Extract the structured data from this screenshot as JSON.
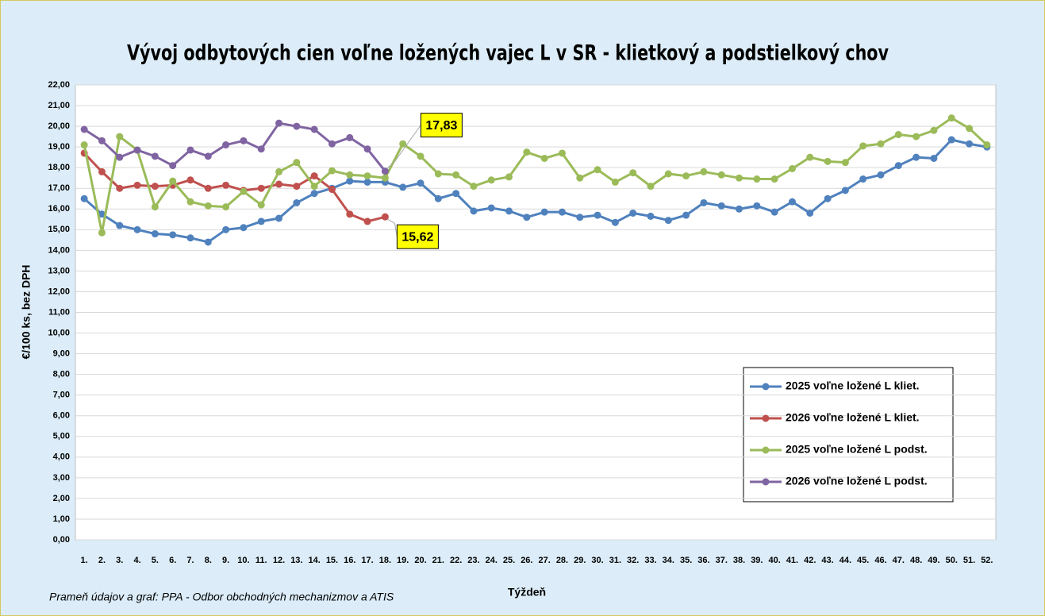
{
  "chart_data": {
    "type": "line",
    "title": "Vývoj odbytových cien voľne ložených vajec L v SR - klietkový a podstielkový chov",
    "y_label": "€/100 ks, bez DPH",
    "x_label": "Týždeň",
    "source": "Prameň údajov a graf: PPA - Odbor obchodných mechanizmov a ATIS",
    "categories": [
      "1.",
      "2.",
      "3.",
      "4.",
      "5.",
      "6.",
      "7.",
      "8.",
      "9.",
      "10.",
      "11.",
      "12.",
      "13.",
      "14.",
      "15.",
      "16.",
      "17.",
      "18.",
      "19.",
      "20.",
      "21.",
      "22.",
      "23.",
      "24.",
      "25.",
      "26.",
      "27.",
      "28.",
      "29.",
      "30.",
      "31.",
      "32.",
      "33.",
      "34.",
      "35.",
      "36.",
      "37.",
      "38.",
      "39.",
      "40.",
      "41.",
      "42.",
      "43.",
      "44.",
      "45.",
      "46.",
      "47.",
      "48.",
      "49.",
      "50.",
      "51.",
      "52."
    ],
    "ylim": [
      0,
      22
    ],
    "yticks": [
      {
        "value": 0,
        "label": "0,00"
      },
      {
        "value": 1,
        "label": "1,00"
      },
      {
        "value": 2,
        "label": "2,00"
      },
      {
        "value": 3,
        "label": "3,00"
      },
      {
        "value": 4,
        "label": "4,00"
      },
      {
        "value": 5,
        "label": "5,00"
      },
      {
        "value": 6,
        "label": "6,00"
      },
      {
        "value": 7,
        "label": "7,00"
      },
      {
        "value": 8,
        "label": "8,00"
      },
      {
        "value": 9,
        "label": "9,00"
      },
      {
        "value": 10,
        "label": "10,00"
      },
      {
        "value": 11,
        "label": "11,00"
      },
      {
        "value": 12,
        "label": "12,00"
      },
      {
        "value": 13,
        "label": "13,00"
      },
      {
        "value": 14,
        "label": "14,00"
      },
      {
        "value": 15,
        "label": "15,00"
      },
      {
        "value": 16,
        "label": "16,00"
      },
      {
        "value": 17,
        "label": "17,00"
      },
      {
        "value": 18,
        "label": "18,00"
      },
      {
        "value": 19,
        "label": "19,00"
      },
      {
        "value": 20,
        "label": "20,00"
      },
      {
        "value": 21,
        "label": "21,00"
      },
      {
        "value": 22,
        "label": "22,00"
      }
    ],
    "grid": true,
    "legend": "right",
    "series": [
      {
        "name": "2025 voľne ložené L kliet.",
        "color": "#4f81bd",
        "values": [
          16.5,
          15.75,
          15.2,
          15.0,
          14.8,
          14.75,
          14.6,
          14.4,
          15.0,
          15.1,
          15.4,
          15.55,
          16.3,
          16.75,
          17.0,
          17.35,
          17.3,
          17.3,
          17.05,
          17.25,
          16.5,
          16.75,
          15.9,
          16.05,
          15.9,
          15.6,
          15.85,
          15.85,
          15.6,
          15.7,
          15.35,
          15.8,
          15.65,
          15.45,
          15.7,
          16.3,
          16.15,
          16.0,
          16.15,
          15.85,
          16.35,
          15.8,
          16.5,
          16.9,
          17.45,
          17.65,
          18.1,
          18.5,
          18.45,
          19.35,
          19.15,
          19.0
        ]
      },
      {
        "name": "2026 voľne ložené L kliet.",
        "color": "#c0504d",
        "values": [
          18.7,
          17.8,
          17.0,
          17.15,
          17.1,
          17.15,
          17.4,
          17.0,
          17.15,
          16.9,
          17.0,
          17.2,
          17.1,
          17.6,
          16.95,
          15.75,
          15.4,
          15.62,
          null,
          null,
          null,
          null,
          null,
          null,
          null,
          null,
          null,
          null,
          null,
          null,
          null,
          null,
          null,
          null,
          null,
          null,
          null,
          null,
          null,
          null,
          null,
          null,
          null,
          null,
          null,
          null,
          null,
          null,
          null,
          null,
          null,
          null
        ],
        "value_labels": [
          null,
          null,
          null,
          null,
          null,
          null,
          null,
          null,
          null,
          null,
          null,
          null,
          null,
          null,
          null,
          null,
          null,
          "15,62",
          null,
          null,
          null,
          null,
          null,
          null,
          null,
          null,
          null,
          null,
          null,
          null,
          null,
          null,
          null,
          null,
          null,
          null,
          null,
          null,
          null,
          null,
          null,
          null,
          null,
          null,
          null,
          null,
          null,
          null,
          null,
          null,
          null,
          null
        ]
      },
      {
        "name": "2025 voľne ložené L podst.",
        "color": "#9bbb59",
        "values": [
          19.1,
          14.85,
          19.5,
          18.85,
          16.1,
          17.35,
          16.35,
          16.15,
          16.1,
          16.85,
          16.2,
          17.8,
          18.25,
          17.1,
          17.85,
          17.65,
          17.6,
          17.5,
          19.15,
          18.55,
          17.7,
          17.65,
          17.1,
          17.4,
          17.55,
          18.75,
          18.45,
          18.7,
          17.5,
          17.9,
          17.3,
          17.75,
          17.1,
          17.7,
          17.6,
          17.8,
          17.65,
          17.5,
          17.45,
          17.45,
          17.95,
          18.5,
          18.3,
          18.25,
          19.05,
          19.15,
          19.6,
          19.5,
          19.8,
          20.4,
          19.9,
          19.1
        ]
      },
      {
        "name": "2026 voľne ložené L podst.",
        "color": "#8064a2",
        "values": [
          19.85,
          19.3,
          18.5,
          18.85,
          18.55,
          18.1,
          18.85,
          18.55,
          19.1,
          19.3,
          18.9,
          20.15,
          20.0,
          19.85,
          19.15,
          19.45,
          18.9,
          17.83,
          null,
          null,
          null,
          null,
          null,
          null,
          null,
          null,
          null,
          null,
          null,
          null,
          null,
          null,
          null,
          null,
          null,
          null,
          null,
          null,
          null,
          null,
          null,
          null,
          null,
          null,
          null,
          null,
          null,
          null,
          null,
          null,
          null,
          null
        ],
        "value_labels": [
          null,
          null,
          null,
          null,
          null,
          null,
          null,
          null,
          null,
          null,
          null,
          null,
          null,
          null,
          null,
          null,
          null,
          "17,83",
          null,
          null,
          null,
          null,
          null,
          null,
          null,
          null,
          null,
          null,
          null,
          null,
          null,
          null,
          null,
          null,
          null,
          null,
          null,
          null,
          null,
          null,
          null,
          null,
          null,
          null,
          null,
          null,
          null,
          null,
          null,
          null,
          null,
          null
        ]
      }
    ]
  }
}
